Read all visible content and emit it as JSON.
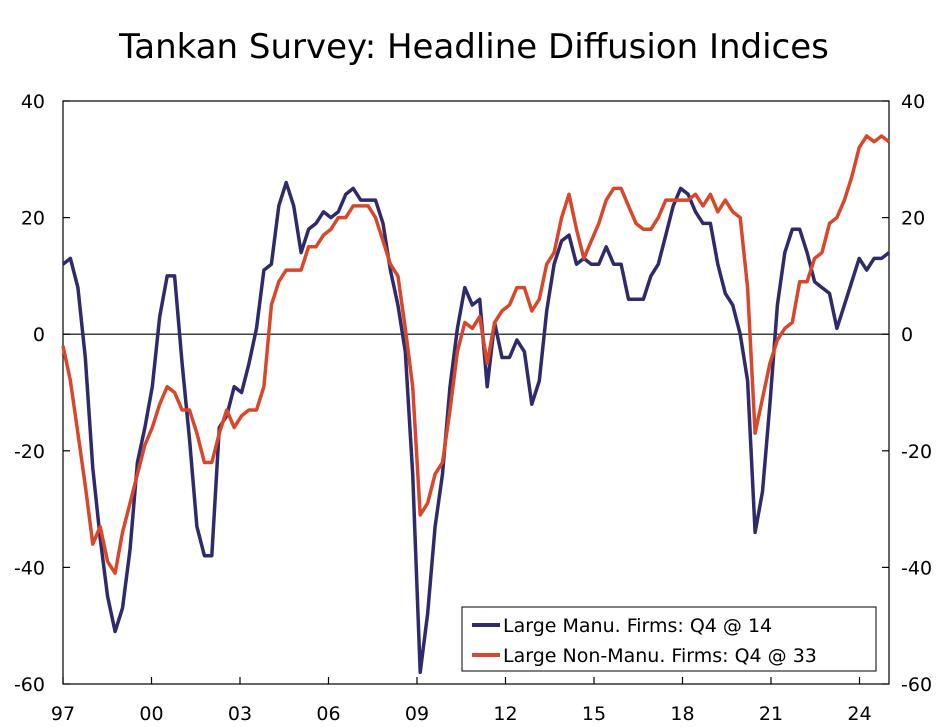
{
  "chart_data": {
    "type": "line",
    "title": "Tankan Survey: Headline Diffusion Indices",
    "xlabel": "",
    "ylabel": "",
    "ylim": [
      -60,
      40
    ],
    "yticks": [
      40,
      20,
      0,
      -20,
      -40,
      -60
    ],
    "x_start": 1997,
    "x_end": 2025,
    "xticks": [
      {
        "year": 1997,
        "label": "97"
      },
      {
        "year": 2000,
        "label": "00"
      },
      {
        "year": 2003,
        "label": "03"
      },
      {
        "year": 2006,
        "label": "06"
      },
      {
        "year": 2009,
        "label": "09"
      },
      {
        "year": 2012,
        "label": "12"
      },
      {
        "year": 2015,
        "label": "15"
      },
      {
        "year": 2018,
        "label": "18"
      },
      {
        "year": 2021,
        "label": "21"
      },
      {
        "year": 2024,
        "label": "24"
      }
    ],
    "x_interval": "quarterly",
    "legend_position": "bottom-right",
    "grid": false,
    "series": [
      {
        "name": "Large Manu. Firms: Q4 @ 14",
        "color": "#2e2a6b",
        "values": [
          12,
          13,
          8,
          -4,
          -23,
          -35,
          -45,
          -51,
          -47,
          -37,
          -22,
          -16,
          -9,
          3,
          10,
          10,
          -5,
          -18,
          -33,
          -38,
          -38,
          -16,
          -14,
          -9,
          -10,
          -5,
          1,
          11,
          12,
          22,
          26,
          22,
          14,
          18,
          19,
          21,
          20,
          21,
          24,
          25,
          23,
          23,
          23,
          19,
          11,
          5,
          -3,
          -24,
          -58,
          -48,
          -33,
          -24,
          -9,
          1,
          8,
          5,
          6,
          -9,
          2,
          -4,
          -4,
          -1,
          -3,
          -12,
          -8,
          4,
          12,
          16,
          17,
          12,
          13,
          12,
          12,
          15,
          12,
          12,
          6,
          6,
          6,
          10,
          12,
          17,
          22,
          25,
          24,
          21,
          19,
          19,
          12,
          7,
          5,
          0,
          -8,
          -34,
          -27,
          -12,
          5,
          14,
          18,
          18,
          14,
          9,
          8,
          7,
          1,
          5,
          9,
          13,
          11,
          13,
          13,
          14
        ]
      },
      {
        "name": "Large Non-Manu. Firms: Q4 @ 33",
        "color": "#d9472b",
        "values": [
          -2,
          -8,
          -17,
          -26,
          -36,
          -33,
          -39,
          -41,
          -34,
          -29,
          -24,
          -19,
          -16,
          -12,
          -9,
          -10,
          -13,
          -13,
          -17,
          -22,
          -22,
          -17,
          -13,
          -16,
          -14,
          -13,
          -13,
          -9,
          5,
          9,
          11,
          11,
          11,
          15,
          15,
          17,
          18,
          20,
          20,
          22,
          22,
          22,
          20,
          16,
          12,
          10,
          1,
          -9,
          -31,
          -29,
          -24,
          -22,
          -13,
          -3,
          2,
          1,
          3,
          -5,
          2,
          4,
          5,
          8,
          8,
          4,
          6,
          12,
          14,
          20,
          24,
          18,
          13,
          16,
          19,
          23,
          25,
          25,
          22,
          19,
          18,
          18,
          20,
          23,
          23,
          23,
          23,
          24,
          22,
          24,
          21,
          23,
          21,
          20,
          8,
          -17,
          -11,
          -5,
          -1,
          1,
          2,
          9,
          9,
          13,
          14,
          19,
          20,
          23,
          27,
          32,
          34,
          33,
          34,
          33
        ]
      }
    ]
  }
}
